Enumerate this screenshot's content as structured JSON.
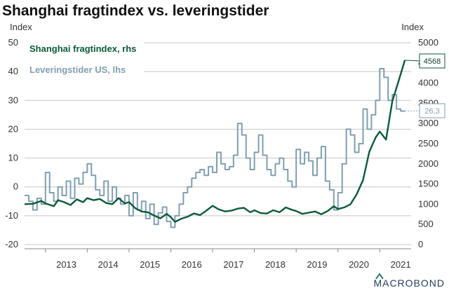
{
  "chart_data": {
    "type": "line",
    "title": "Shanghai fragtindex vs. leveringstider",
    "left_axis": {
      "unit": "Index",
      "ylim": [
        -20,
        50
      ],
      "ticks": [
        -20,
        -10,
        0,
        10,
        20,
        30,
        40,
        50
      ]
    },
    "right_axis": {
      "unit": "Index",
      "ylim": [
        0,
        5000
      ],
      "ticks": [
        0,
        500,
        1000,
        1500,
        2000,
        2500,
        3000,
        3500,
        4000,
        4500,
        5000
      ]
    },
    "x_axis": {
      "labels": [
        "2013",
        "2014",
        "2015",
        "2016",
        "2017",
        "2018",
        "2019",
        "2020",
        "2021"
      ],
      "xlim": [
        2012.5,
        2021.75
      ]
    },
    "grid": "horizontal",
    "legend_placement": "top-left",
    "series": [
      {
        "name": "Shanghai fragtindex, rhs",
        "axis": "right",
        "color": "#0b5a3a",
        "end_label": "4568",
        "x": [
          2012.5,
          2012.7,
          2012.9,
          2013.0,
          2013.2,
          2013.3,
          2013.45,
          2013.6,
          2013.75,
          2013.9,
          2014.0,
          2014.15,
          2014.3,
          2014.45,
          2014.6,
          2014.75,
          2014.9,
          2015.0,
          2015.15,
          2015.3,
          2015.45,
          2015.6,
          2015.75,
          2015.9,
          2016.0,
          2016.1,
          2016.25,
          2016.4,
          2016.55,
          2016.7,
          2016.85,
          2017.0,
          2017.15,
          2017.3,
          2017.45,
          2017.6,
          2017.75,
          2017.9,
          2018.0,
          2018.15,
          2018.3,
          2018.45,
          2018.6,
          2018.75,
          2018.9,
          2019.0,
          2019.15,
          2019.3,
          2019.45,
          2019.6,
          2019.75,
          2019.9,
          2020.0,
          2020.15,
          2020.3,
          2020.45,
          2020.6,
          2020.75,
          2020.9,
          2021.0,
          2021.15,
          2021.3,
          2021.45,
          2021.6
        ],
        "values": [
          1000,
          1010,
          1080,
          1020,
          950,
          1100,
          1050,
          980,
          1120,
          1050,
          1150,
          1100,
          1130,
          1030,
          1000,
          1150,
          1020,
          1050,
          900,
          820,
          800,
          720,
          650,
          760,
          680,
          560,
          640,
          690,
          770,
          730,
          840,
          960,
          870,
          820,
          840,
          890,
          910,
          800,
          850,
          780,
          770,
          850,
          800,
          920,
          860,
          830,
          760,
          790,
          820,
          750,
          830,
          950,
          880,
          920,
          1000,
          1250,
          1600,
          2300,
          2650,
          2800,
          2600,
          3550,
          4050,
          4568
        ]
      },
      {
        "name": "Leveringstider US, lhs",
        "axis": "left",
        "color": "#7f9fb2",
        "end_label": "26,3",
        "x": [
          2012.5,
          2012.6,
          2012.7,
          2012.8,
          2012.9,
          2013.0,
          2013.1,
          2013.2,
          2013.3,
          2013.4,
          2013.5,
          2013.6,
          2013.7,
          2013.8,
          2013.9,
          2014.0,
          2014.1,
          2014.2,
          2014.3,
          2014.4,
          2014.5,
          2014.6,
          2014.7,
          2014.8,
          2014.9,
          2015.0,
          2015.1,
          2015.2,
          2015.3,
          2015.4,
          2015.5,
          2015.6,
          2015.7,
          2015.8,
          2015.9,
          2016.0,
          2016.1,
          2016.2,
          2016.3,
          2016.4,
          2016.5,
          2016.6,
          2016.7,
          2016.8,
          2016.9,
          2017.0,
          2017.1,
          2017.2,
          2017.3,
          2017.4,
          2017.5,
          2017.6,
          2017.7,
          2017.8,
          2017.9,
          2018.0,
          2018.1,
          2018.2,
          2018.3,
          2018.4,
          2018.5,
          2018.6,
          2018.7,
          2018.8,
          2018.9,
          2019.0,
          2019.1,
          2019.2,
          2019.3,
          2019.4,
          2019.5,
          2019.6,
          2019.7,
          2019.8,
          2019.9,
          2020.0,
          2020.1,
          2020.2,
          2020.3,
          2020.4,
          2020.5,
          2020.6,
          2020.7,
          2020.8,
          2020.9,
          2021.0,
          2021.1,
          2021.2,
          2021.3,
          2021.4,
          2021.5,
          2021.6
        ],
        "values": [
          -3,
          -5,
          -8,
          -4,
          -6,
          5,
          -2,
          -5,
          0,
          -3,
          2,
          -4,
          3,
          1,
          5,
          8,
          4,
          -1,
          -3,
          2,
          -5,
          0,
          -4,
          -6,
          -3,
          -10,
          -2,
          -8,
          -5,
          -11,
          -6,
          -13,
          -9,
          -7,
          -12,
          -14,
          -10,
          -6,
          -2,
          0,
          3,
          5,
          6,
          4,
          7,
          5,
          12,
          8,
          6,
          7,
          11,
          22,
          18,
          10,
          6,
          12,
          18,
          11,
          6,
          4,
          8,
          10,
          6,
          2,
          0,
          13,
          8,
          12,
          9,
          4,
          10,
          14,
          2,
          -1,
          -8,
          -2,
          8,
          20,
          18,
          12,
          15,
          27,
          20,
          25,
          30,
          41,
          38,
          30,
          32,
          27,
          26.3,
          26.3
        ]
      }
    ]
  },
  "branding": {
    "logo_text": "MACROBOND"
  }
}
